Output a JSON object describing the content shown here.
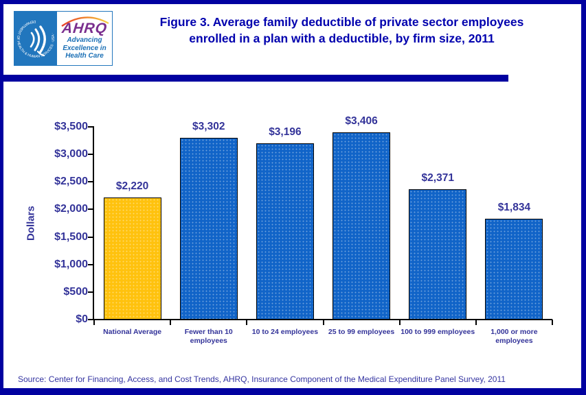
{
  "header": {
    "logo": {
      "seal_ring_text": "DEPARTMENT OF HEALTH & HUMAN SERVICES · USA ·",
      "org": "AHRQ",
      "tagline_lines": [
        "Advancing",
        "Excellence in",
        "Health Care"
      ]
    },
    "title_lines": [
      "Figure 3. Average family deductible of private sector employees",
      "enrolled in a plan with a deductible, by firm size, 2011"
    ]
  },
  "chart_data": {
    "type": "bar",
    "title": "Figure 3. Average family deductible of private sector employees enrolled in a plan with a deductible, by firm size, 2011",
    "categories": [
      "National Average",
      "Fewer than 10 employees",
      "10 to 24 employees",
      "25 to 99 employees",
      "100 to 999 employees",
      "1,000 or more employees"
    ],
    "values": [
      2220,
      3302,
      3196,
      3406,
      2371,
      1834
    ],
    "value_labels": [
      "$2,220",
      "$3,302",
      "$3,196",
      "$3,406",
      "$2,371",
      "$1,834"
    ],
    "ylabel": "Dollars",
    "xlabel": "",
    "ylim": [
      0,
      3500
    ],
    "ytick_step": 500,
    "ytick_labels": [
      "$0",
      "$500",
      "$1,000",
      "$1,500",
      "$2,000",
      "$2,500",
      "$3,000",
      "$3,500"
    ],
    "bar_colors": [
      "#FFC20E",
      "#1164C8",
      "#1164C8",
      "#1164C8",
      "#1164C8",
      "#1164C8"
    ],
    "grid": false,
    "legend": false
  },
  "footer": {
    "source": "Source: Center for Financing, Access, and Cost Trends, AHRQ, Insurance Component of the Medical Expenditure Panel Survey,  2011"
  },
  "colors": {
    "border": "#0101A0",
    "title_text": "#0000AE",
    "axis_text": "#333399",
    "axis_line": "#000000",
    "bar_blue": "#1164C8",
    "bar_gold": "#FFC20E",
    "logo_blue": "#2176BD",
    "logo_purple": "#7A2E8E",
    "logo_tagline_blue": "#1A6FB5"
  }
}
